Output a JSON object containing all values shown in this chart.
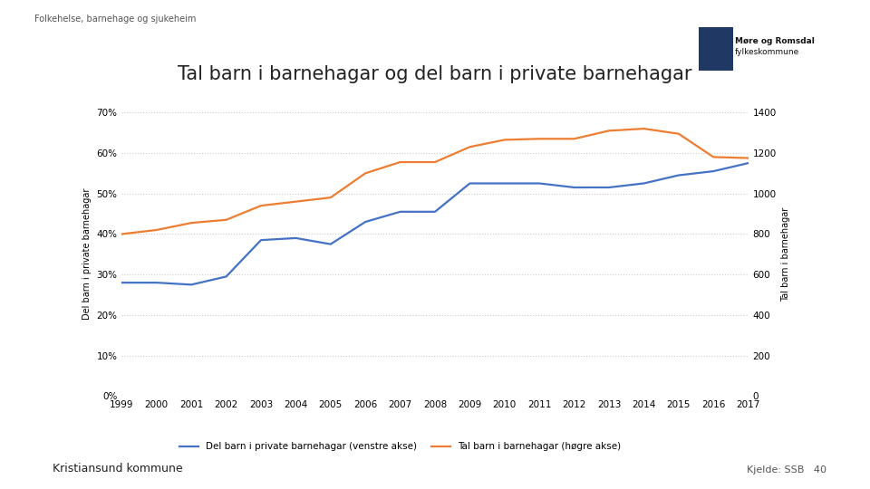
{
  "title": "Tal barn i barnehagar og del barn i private barnehagar",
  "years": [
    1999,
    2000,
    2001,
    2002,
    2003,
    2004,
    2005,
    2006,
    2007,
    2008,
    2009,
    2010,
    2011,
    2012,
    2013,
    2014,
    2015,
    2016,
    2017
  ],
  "blue_pct": [
    0.28,
    0.28,
    0.275,
    0.295,
    0.385,
    0.39,
    0.375,
    0.43,
    0.455,
    0.455,
    0.525,
    0.525,
    0.525,
    0.515,
    0.515,
    0.525,
    0.545,
    0.555,
    0.575
  ],
  "orange_count": [
    800,
    820,
    855,
    870,
    940,
    960,
    980,
    1100,
    1155,
    1155,
    1230,
    1265,
    1270,
    1270,
    1310,
    1320,
    1295,
    1180,
    1175
  ],
  "blue_color": "#4472C4",
  "orange_color": "#ED7D31",
  "ylabel_left": "Del barn i private barnehagar",
  "ylabel_right": "Tal barn i barnehagar",
  "legend_blue": "Del barn i private barnehagar (venstre akse)",
  "legend_orange": "Tal barn i barnehagar (høgre akse)",
  "ylim_left": [
    0,
    0.7
  ],
  "ylim_right": [
    0,
    1400
  ],
  "yticks_left": [
    0.0,
    0.1,
    0.2,
    0.3,
    0.4,
    0.5,
    0.6,
    0.7
  ],
  "yticks_right": [
    0,
    200,
    400,
    600,
    800,
    1000,
    1200,
    1400
  ],
  "header_text": "Folkehelse, barnehage og sjukeheim",
  "footer_left": "Kristiansund kommune",
  "footer_right": "Kjelde: SSB   40",
  "bg_color": "#FFFFFF",
  "plot_bg": "#FFFFFF",
  "grid_color": "#CCCCCC",
  "title_fontsize": 15,
  "axis_label_fontsize": 7,
  "tick_fontsize": 7.5
}
